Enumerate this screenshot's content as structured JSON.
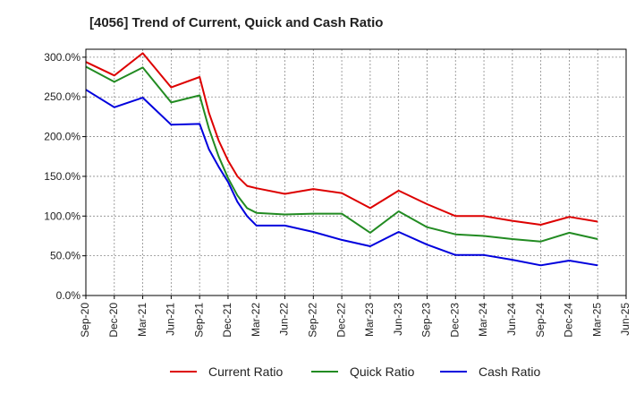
{
  "chart_data": {
    "type": "line",
    "title": "[4056]  Trend of Current, Quick and Cash Ratio",
    "xlabel": "",
    "ylabel": "",
    "ylim": [
      0,
      310
    ],
    "y_ticks": [
      0,
      50,
      100,
      150,
      200,
      250,
      300
    ],
    "y_tick_labels": [
      "0.0%",
      "50.0%",
      "100.0%",
      "150.0%",
      "200.0%",
      "250.0%",
      "300.0%"
    ],
    "x_tick_labels": [
      "Sep-20",
      "Dec-20",
      "Mar-21",
      "Jun-21",
      "Sep-21",
      "Dec-21",
      "Mar-22",
      "Jun-22",
      "Sep-22",
      "Dec-22",
      "Mar-23",
      "Jun-23",
      "Sep-23",
      "Dec-23",
      "Mar-24",
      "Jun-24",
      "Sep-24",
      "Dec-24",
      "Mar-25",
      "Jun-25"
    ],
    "x_points": [
      0,
      1,
      2,
      3,
      4,
      4.33,
      4.67,
      5,
      5.33,
      5.67,
      6,
      7,
      8,
      9,
      10,
      11,
      12,
      13,
      14,
      15,
      16,
      17,
      18
    ],
    "grid": true,
    "legend_position": "bottom",
    "series": [
      {
        "name": "Current Ratio",
        "color": "#dd0000",
        "values": [
          294,
          277,
          305,
          262,
          275,
          230,
          195,
          170,
          150,
          138,
          135,
          128,
          134,
          129,
          110,
          132,
          115,
          100,
          100,
          94,
          89,
          99,
          93
        ]
      },
      {
        "name": "Quick Ratio",
        "color": "#228B22",
        "values": [
          288,
          269,
          287,
          243,
          252,
          210,
          175,
          148,
          126,
          110,
          104,
          102,
          103,
          103,
          79,
          106,
          86,
          77,
          75,
          71,
          68,
          79,
          71
        ]
      },
      {
        "name": "Cash Ratio",
        "color": "#0000dd",
        "values": [
          259,
          237,
          249,
          215,
          216,
          184,
          162,
          143,
          118,
          100,
          88,
          88,
          80,
          70,
          62,
          80,
          64,
          51,
          51,
          45,
          38,
          44,
          38
        ]
      }
    ]
  }
}
